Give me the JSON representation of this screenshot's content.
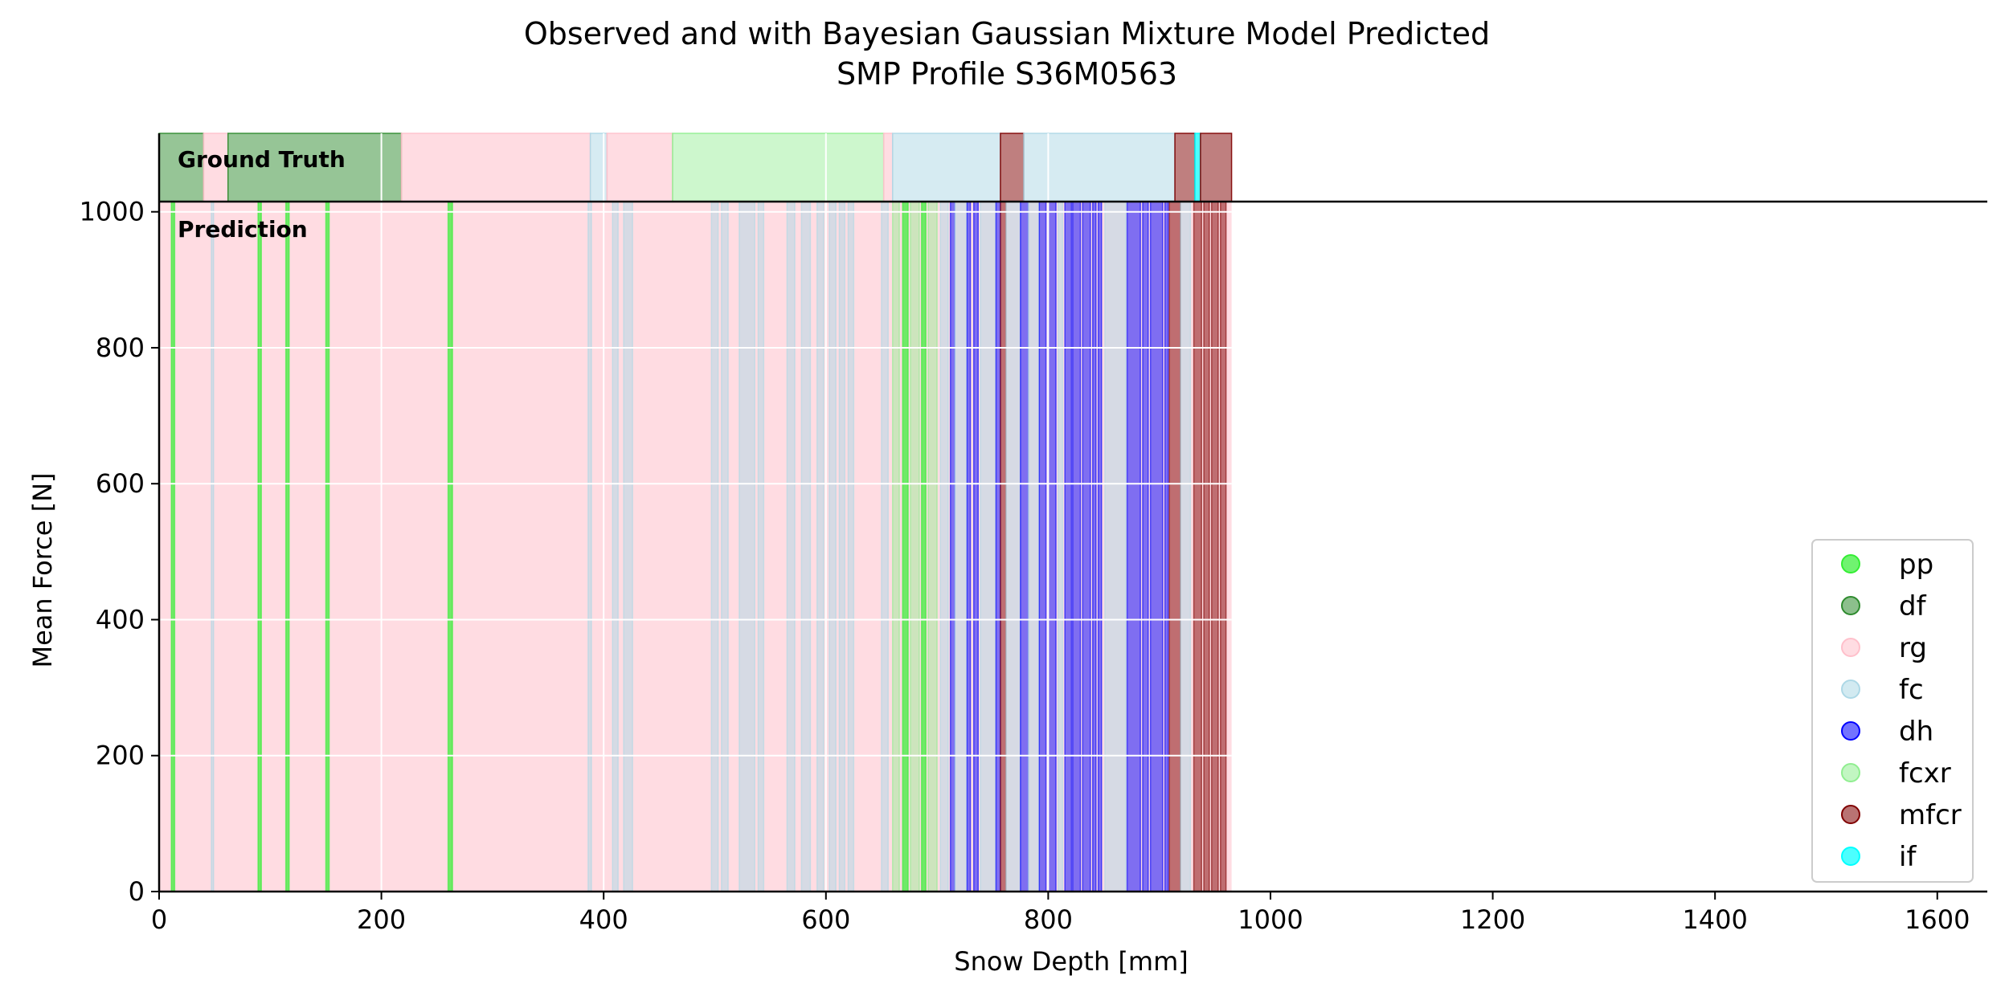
{
  "chart_data": {
    "type": "area",
    "title": "Observed and with Bayesian Gaussian Mixture Model Predicted",
    "subtitle": "SMP Profile S36M0563",
    "xlabel": "Snow Depth [mm]",
    "ylabel": "Mean Force [N]",
    "xlim": [
      0,
      1645
    ],
    "ylim": [
      0,
      1015
    ],
    "x_ticks": [
      0,
      200,
      400,
      600,
      800,
      1000,
      1200,
      1400,
      1600
    ],
    "y_ticks": [
      0,
      200,
      400,
      600,
      800,
      1000
    ],
    "grid": true,
    "legend_position": "lower-right",
    "panels": {
      "ground_truth_label": "Ground Truth",
      "prediction_label": "Prediction"
    },
    "classes": [
      {
        "name": "pp",
        "color": "#33ee33",
        "alpha": 0.7
      },
      {
        "name": "df",
        "color": "#2e8b2e",
        "alpha": 0.5
      },
      {
        "name": "rg",
        "color": "#ffc0cb",
        "alpha": 0.55
      },
      {
        "name": "fc",
        "color": "#add8e6",
        "alpha": 0.5
      },
      {
        "name": "dh",
        "color": "#0000ff",
        "alpha": 0.5
      },
      {
        "name": "fcxr",
        "color": "#90ee90",
        "alpha": 0.45
      },
      {
        "name": "mfcr",
        "color": "#800000",
        "alpha": 0.5
      },
      {
        "name": "if",
        "color": "#00ffff",
        "alpha": 0.7
      }
    ],
    "ground_truth": [
      {
        "start": 0,
        "end": 40,
        "label": "df"
      },
      {
        "start": 40,
        "end": 62,
        "label": "rg"
      },
      {
        "start": 62,
        "end": 218,
        "label": "df"
      },
      {
        "start": 218,
        "end": 388,
        "label": "rg"
      },
      {
        "start": 388,
        "end": 403,
        "label": "fc"
      },
      {
        "start": 403,
        "end": 462,
        "label": "rg"
      },
      {
        "start": 462,
        "end": 652,
        "label": "fcxr"
      },
      {
        "start": 652,
        "end": 660,
        "label": "rg"
      },
      {
        "start": 660,
        "end": 757,
        "label": "fc"
      },
      {
        "start": 757,
        "end": 778,
        "label": "mfcr"
      },
      {
        "start": 778,
        "end": 914,
        "label": "fc"
      },
      {
        "start": 914,
        "end": 932,
        "label": "mfcr"
      },
      {
        "start": 932,
        "end": 937,
        "label": "if"
      },
      {
        "start": 937,
        "end": 965,
        "label": "mfcr"
      }
    ],
    "prediction_base": {
      "start": 0,
      "end": 965,
      "label": "rg"
    },
    "prediction": [
      {
        "start": 11,
        "end": 14,
        "label": "pp"
      },
      {
        "start": 47,
        "end": 49,
        "label": "fc"
      },
      {
        "start": 89,
        "end": 92,
        "label": "pp"
      },
      {
        "start": 114,
        "end": 117,
        "label": "pp"
      },
      {
        "start": 150,
        "end": 153,
        "label": "pp"
      },
      {
        "start": 260,
        "end": 264,
        "label": "pp"
      },
      {
        "start": 386,
        "end": 389,
        "label": "fc"
      },
      {
        "start": 408,
        "end": 413,
        "label": "fc"
      },
      {
        "start": 418,
        "end": 426,
        "label": "fc"
      },
      {
        "start": 497,
        "end": 503,
        "label": "fc"
      },
      {
        "start": 506,
        "end": 512,
        "label": "fc"
      },
      {
        "start": 522,
        "end": 536,
        "label": "fc"
      },
      {
        "start": 539,
        "end": 544,
        "label": "fc"
      },
      {
        "start": 565,
        "end": 572,
        "label": "fc"
      },
      {
        "start": 578,
        "end": 586,
        "label": "fc"
      },
      {
        "start": 592,
        "end": 598,
        "label": "fc"
      },
      {
        "start": 603,
        "end": 609,
        "label": "fc"
      },
      {
        "start": 612,
        "end": 617,
        "label": "fc"
      },
      {
        "start": 620,
        "end": 625,
        "label": "fc"
      },
      {
        "start": 650,
        "end": 656,
        "label": "fc"
      },
      {
        "start": 660,
        "end": 666,
        "label": "fcxr"
      },
      {
        "start": 669,
        "end": 674,
        "label": "pp"
      },
      {
        "start": 676,
        "end": 684,
        "label": "fcxr"
      },
      {
        "start": 686,
        "end": 690,
        "label": "pp"
      },
      {
        "start": 692,
        "end": 700,
        "label": "fcxr"
      },
      {
        "start": 703,
        "end": 710,
        "label": "fc"
      },
      {
        "start": 712,
        "end": 716,
        "label": "dh"
      },
      {
        "start": 716,
        "end": 727,
        "label": "fc"
      },
      {
        "start": 727,
        "end": 730,
        "label": "dh"
      },
      {
        "start": 733,
        "end": 737,
        "label": "dh"
      },
      {
        "start": 739,
        "end": 753,
        "label": "fc"
      },
      {
        "start": 753,
        "end": 757,
        "label": "dh"
      },
      {
        "start": 757,
        "end": 762,
        "label": "mfcr"
      },
      {
        "start": 762,
        "end": 775,
        "label": "fc"
      },
      {
        "start": 775,
        "end": 782,
        "label": "dh"
      },
      {
        "start": 782,
        "end": 792,
        "label": "fc"
      },
      {
        "start": 792,
        "end": 798,
        "label": "dh"
      },
      {
        "start": 800,
        "end": 807,
        "label": "dh"
      },
      {
        "start": 809,
        "end": 813,
        "label": "fc"
      },
      {
        "start": 815,
        "end": 821,
        "label": "dh"
      },
      {
        "start": 822,
        "end": 829,
        "label": "dh"
      },
      {
        "start": 831,
        "end": 838,
        "label": "dh"
      },
      {
        "start": 840,
        "end": 843,
        "label": "dh"
      },
      {
        "start": 845,
        "end": 848,
        "label": "dh"
      },
      {
        "start": 851,
        "end": 870,
        "label": "fc"
      },
      {
        "start": 871,
        "end": 883,
        "label": "dh"
      },
      {
        "start": 885,
        "end": 890,
        "label": "dh"
      },
      {
        "start": 892,
        "end": 903,
        "label": "dh"
      },
      {
        "start": 905,
        "end": 908,
        "label": "dh"
      },
      {
        "start": 909,
        "end": 919,
        "label": "mfcr"
      },
      {
        "start": 919,
        "end": 928,
        "label": "fc"
      },
      {
        "start": 931,
        "end": 938,
        "label": "mfcr"
      },
      {
        "start": 940,
        "end": 945,
        "label": "mfcr"
      },
      {
        "start": 947,
        "end": 953,
        "label": "mfcr"
      },
      {
        "start": 955,
        "end": 960,
        "label": "mfcr"
      }
    ]
  }
}
